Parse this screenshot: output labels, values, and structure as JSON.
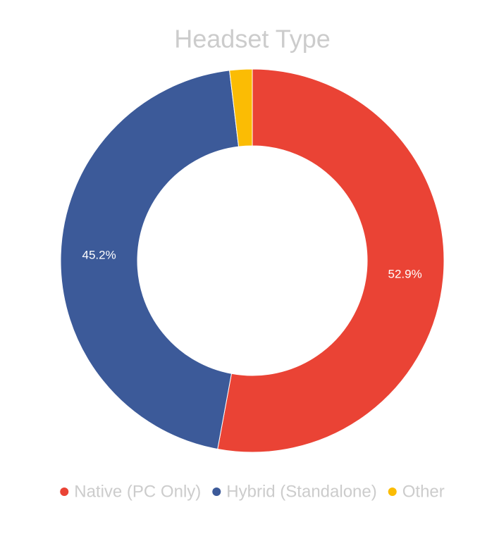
{
  "chart_data": {
    "type": "donut",
    "title": "Headset Type",
    "categories": [
      "Native (PC Only)",
      "Hybrid (Standalone)",
      "Other"
    ],
    "values": [
      52.9,
      45.2,
      1.9
    ],
    "value_labels": [
      "52.9%",
      "45.2%",
      null
    ],
    "colors": [
      "#ea4335",
      "#3c5a99",
      "#fbbc04"
    ],
    "legend": "bottom"
  }
}
